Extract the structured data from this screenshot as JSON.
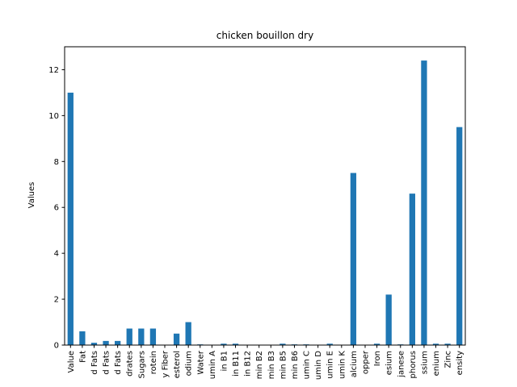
{
  "chart_data": {
    "type": "bar",
    "title": "chicken bouillon dry",
    "xlabel": "",
    "ylabel": "Values",
    "ylim": [
      0,
      13
    ],
    "yticks": [
      0,
      2,
      4,
      6,
      8,
      10,
      12
    ],
    "bar_color": "#1f77b4",
    "grid": false,
    "categories": [
      "Value",
      "Fat",
      "d Fats",
      "d Fats",
      "d Fats",
      "drates",
      "Sugars",
      "rotein",
      "y Fiber",
      "esterol",
      "odium",
      "Water",
      "umin A",
      "in B1",
      "in B11",
      "in B12",
      "min B2",
      "min B3",
      "min B5",
      "min B6",
      "umin C",
      "umin D",
      "umin E",
      "umin K",
      "alcium",
      "opper",
      "Iron",
      "esium",
      "janese",
      "phorus",
      "ssium",
      "enium",
      "Zinc",
      "ensity"
    ],
    "values": [
      11.0,
      0.6,
      0.1,
      0.18,
      0.18,
      0.72,
      0.72,
      0.72,
      0.0,
      0.5,
      1.0,
      0.03,
      0.0,
      0.06,
      0.06,
      0.0,
      0.0,
      0.0,
      0.06,
      0.03,
      0.03,
      0.0,
      0.06,
      0.0,
      7.5,
      0.0,
      0.06,
      2.2,
      0.03,
      6.6,
      12.4,
      0.06,
      0.06,
      9.5
    ]
  }
}
